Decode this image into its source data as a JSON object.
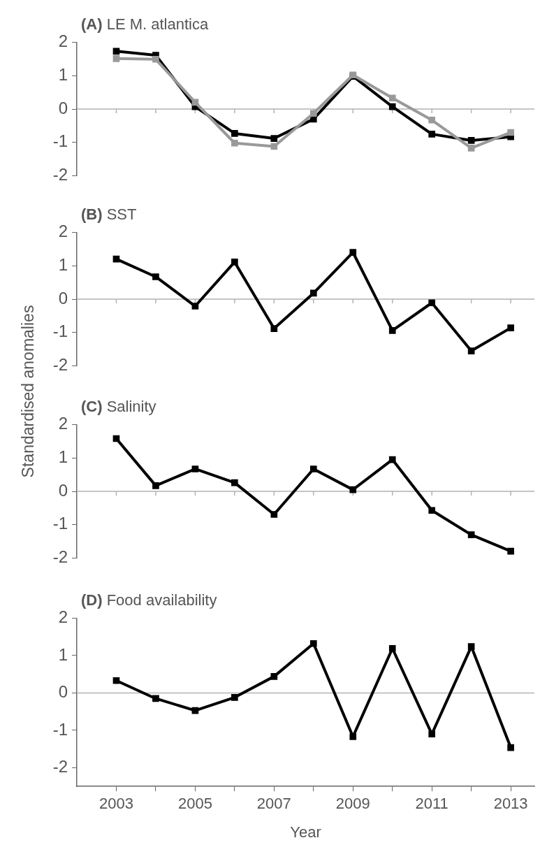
{
  "chart_data": [
    {
      "type": "line",
      "title": "(A) LE M. atlantica",
      "x": [
        2003,
        2004,
        2005,
        2006,
        2007,
        2008,
        2009,
        2010,
        2011,
        2012,
        2013
      ],
      "series": [
        {
          "color": "#999999",
          "values": [
            1.51,
            1.49,
            0.2,
            -1.02,
            -1.12,
            -0.13,
            1.02,
            0.33,
            -0.33,
            -1.17,
            -0.7
          ]
        },
        {
          "color": "#000000",
          "values": [
            1.73,
            1.61,
            0.07,
            -0.73,
            -0.88,
            -0.3,
            0.98,
            0.07,
            -0.75,
            -0.94,
            -0.83
          ]
        }
      ],
      "xlim": [
        2002,
        2013.6
      ],
      "xticks": [
        2003,
        {
          "value": 2004,
          "label": null
        },
        2005,
        {
          "value": 2006,
          "label": null
        },
        2007,
        {
          "value": 2008,
          "label": null
        },
        2009,
        {
          "value": 2010,
          "label": null
        },
        2011,
        {
          "value": 2012,
          "label": null
        },
        2013
      ],
      "ylim": [
        -2,
        2
      ],
      "yticks": [
        -2,
        -1,
        0,
        1,
        2
      ],
      "tick_labels": "y",
      "grid": false,
      "legend": false,
      "marker": "square",
      "line_style": "solid",
      "ref_lines": [
        {
          "axis": "y",
          "value": 0,
          "color": "#b3b3b3"
        }
      ]
    },
    {
      "type": "line",
      "title": "(B) SST",
      "ylabel": "Standardised anomalies",
      "x": [
        2003,
        2004,
        2005,
        2006,
        2007,
        2008,
        2009,
        2010,
        2011,
        2012,
        2013
      ],
      "series": [
        {
          "color": "#000000",
          "values": [
            1.2,
            0.67,
            -0.21,
            1.11,
            -0.88,
            0.18,
            1.4,
            -0.94,
            -0.11,
            -1.55,
            -0.86
          ]
        }
      ],
      "xlim": [
        2002,
        2013.6
      ],
      "xticks": [
        2003,
        {
          "value": 2004,
          "label": null
        },
        2005,
        {
          "value": 2006,
          "label": null
        },
        2007,
        {
          "value": 2008,
          "label": null
        },
        2009,
        {
          "value": 2010,
          "label": null
        },
        2011,
        {
          "value": 2012,
          "label": null
        },
        2013
      ],
      "ylim": [
        -2,
        2
      ],
      "yticks": [
        -2,
        -1,
        0,
        1,
        2
      ],
      "tick_labels": "y",
      "grid": false,
      "legend": false,
      "marker": "square",
      "line_style": "solid",
      "ref_lines": [
        {
          "axis": "y",
          "value": 0,
          "color": "#b3b3b3"
        }
      ]
    },
    {
      "type": "line",
      "title": "(C) Salinity",
      "x": [
        2003,
        2004,
        2005,
        2006,
        2007,
        2008,
        2009,
        2010,
        2011,
        2012,
        2013
      ],
      "series": [
        {
          "color": "#000000",
          "values": [
            1.58,
            0.17,
            0.67,
            0.26,
            -0.69,
            0.67,
            0.05,
            0.95,
            -0.57,
            -1.3,
            -1.79
          ]
        }
      ],
      "xlim": [
        2002,
        2013.6
      ],
      "xticks": [
        2003,
        {
          "value": 2004,
          "label": null
        },
        2005,
        {
          "value": 2006,
          "label": null
        },
        2007,
        {
          "value": 2008,
          "label": null
        },
        2009,
        {
          "value": 2010,
          "label": null
        },
        2011,
        {
          "value": 2012,
          "label": null
        },
        2013
      ],
      "ylim": [
        -2,
        2
      ],
      "yticks": [
        -2,
        -1,
        0,
        1,
        2
      ],
      "tick_labels": "y",
      "grid": false,
      "legend": false,
      "marker": "square",
      "line_style": "solid",
      "ref_lines": [
        {
          "axis": "y",
          "value": 0,
          "color": "#b3b3b3"
        }
      ]
    },
    {
      "type": "line",
      "title": "(D) Food availability",
      "xlabel": "Year",
      "x": [
        2003,
        2004,
        2005,
        2006,
        2007,
        2008,
        2009,
        2010,
        2011,
        2012,
        2013
      ],
      "series": [
        {
          "color": "#000000",
          "values": [
            0.33,
            -0.15,
            -0.47,
            -0.12,
            0.44,
            1.32,
            -1.17,
            1.19,
            -1.1,
            1.24,
            -1.46
          ]
        }
      ],
      "xlim": [
        2002,
        2013.6
      ],
      "xticks": [
        2003,
        {
          "value": 2004,
          "label": null
        },
        2005,
        {
          "value": 2006,
          "label": null
        },
        2007,
        {
          "value": 2008,
          "label": null
        },
        2009,
        {
          "value": 2010,
          "label": null
        },
        2011,
        {
          "value": 2012,
          "label": null
        },
        2013
      ],
      "ylim": [
        -2.5,
        2
      ],
      "yticks": [
        -2,
        -1,
        0,
        1,
        2
      ],
      "grid": false,
      "legend": false,
      "marker": "square",
      "line_style": "solid",
      "ref_lines": [
        {
          "axis": "y",
          "value": 0,
          "color": "#b3b3b3"
        }
      ]
    }
  ]
}
